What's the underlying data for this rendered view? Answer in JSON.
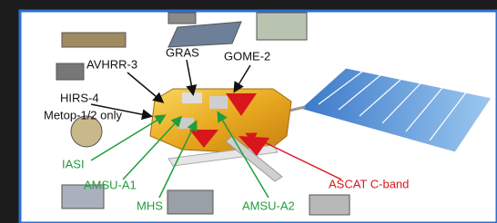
{
  "labels": {
    "gras": "GRAS",
    "gome": "GOME-2",
    "avhrr": "AVHRR-3",
    "hirs": "HIRS-4",
    "metop_note": "Metop-1/2 only",
    "iasi": "IASI",
    "amsu_a1": "AMSU-A1",
    "mhs": "MHS",
    "amsu_a2": "AMSU-A2",
    "ascat": "ASCAT C-band"
  }
}
